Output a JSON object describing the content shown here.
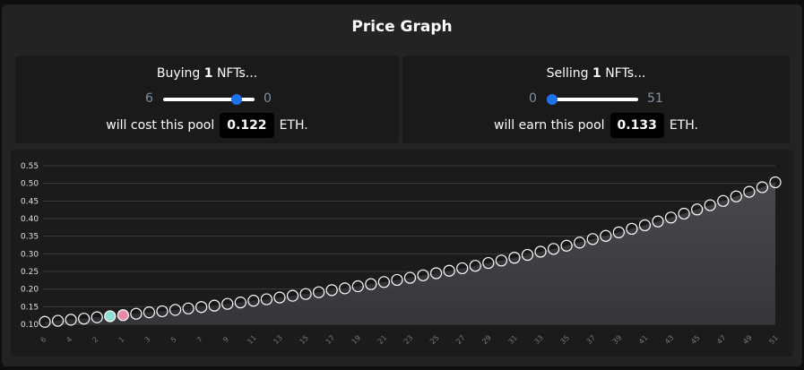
{
  "header": {
    "title": "Price Graph"
  },
  "buy": {
    "verb": "Buying",
    "count": "1",
    "noun": "NFTs...",
    "slider_left": "6",
    "slider_right": "0",
    "result_prefix": "will cost this pool",
    "amount": "0.122",
    "unit": "ETH."
  },
  "sell": {
    "verb": "Selling",
    "count": "1",
    "noun": "NFTs...",
    "slider_left": "0",
    "slider_right": "51",
    "result_prefix": "will earn this pool",
    "amount": "0.133",
    "unit": "ETH."
  },
  "chart_data": {
    "type": "line",
    "categories": [
      6,
      null,
      4,
      null,
      2,
      null,
      1,
      null,
      3,
      null,
      5,
      null,
      7,
      null,
      9,
      null,
      11,
      null,
      13,
      null,
      15,
      null,
      17,
      null,
      19,
      null,
      21,
      null,
      23,
      null,
      25,
      null,
      27,
      null,
      29,
      null,
      31,
      null,
      33,
      null,
      35,
      null,
      37,
      null,
      39,
      null,
      41,
      null,
      43,
      null,
      45,
      null,
      47,
      null,
      49,
      null,
      51
    ],
    "series": [
      {
        "color": "#ffffff",
        "values": [
          0.107,
          0.11,
          0.113,
          0.116,
          0.12,
          0.123,
          0.126,
          0.13,
          0.134,
          0.137,
          0.141,
          0.145,
          0.149,
          0.153,
          0.158,
          0.162,
          0.167,
          0.171,
          0.176,
          0.181,
          0.186,
          0.191,
          0.197,
          0.202,
          0.208,
          0.214,
          0.22,
          0.226,
          0.232,
          0.239,
          0.245,
          0.252,
          0.259,
          0.266,
          0.274,
          0.281,
          0.289,
          0.297,
          0.306,
          0.314,
          0.323,
          0.332,
          0.342,
          0.351,
          0.361,
          0.371,
          0.381,
          0.392,
          0.403,
          0.414,
          0.426,
          0.438,
          0.45,
          0.463,
          0.476,
          0.489,
          0.503
        ]
      }
    ],
    "highlights": [
      {
        "index": 5,
        "color": "#8fded5"
      },
      {
        "index": 6,
        "color": "#e68aa6"
      }
    ],
    "ylim": [
      0.1,
      0.55
    ],
    "yticks": [
      {
        "value": 0.1,
        "label": "0.10"
      },
      {
        "value": 0.15,
        "label": "0.15"
      },
      {
        "value": 0.2,
        "label": "0.20"
      },
      {
        "value": 0.25,
        "label": "0.25"
      },
      {
        "value": 0.3,
        "label": "0.30"
      },
      {
        "value": 0.35,
        "label": "0.35"
      },
      {
        "value": 0.4,
        "label": "0.40"
      },
      {
        "value": 0.45,
        "label": "0.45"
      },
      {
        "value": 0.5,
        "label": "0.50"
      },
      {
        "value": 0.55,
        "label": "0.55"
      }
    ],
    "grid": true
  }
}
